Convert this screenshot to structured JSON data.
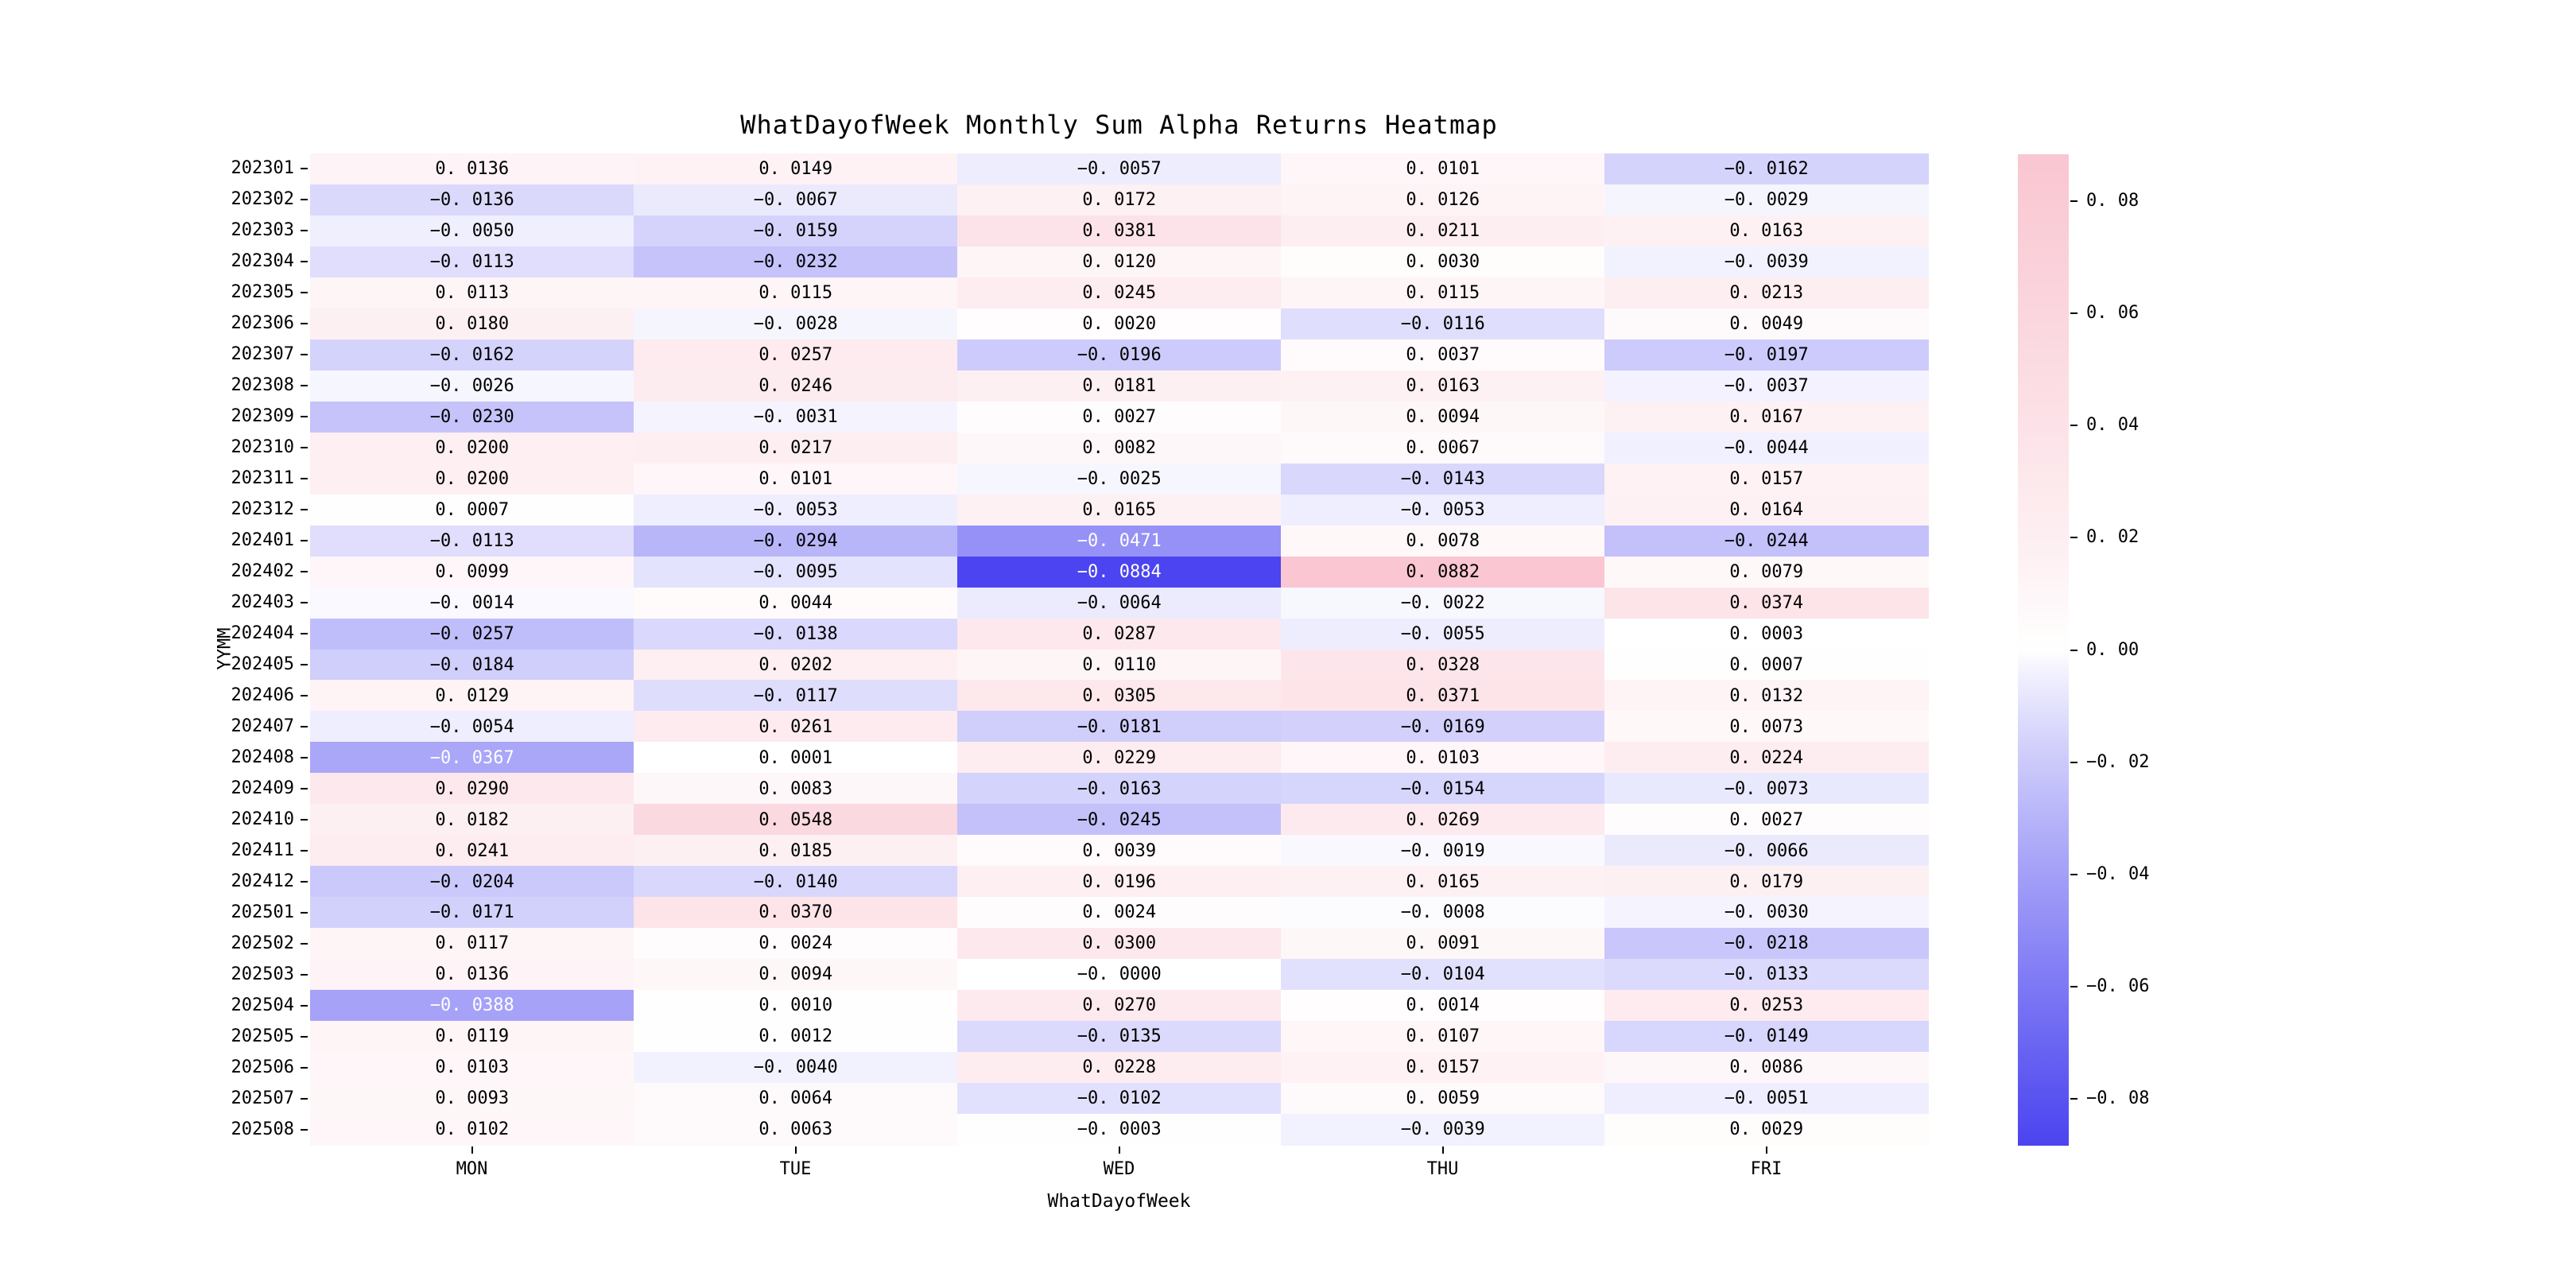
{
  "chart_data": {
    "type": "heatmap",
    "title": "WhatDayofWeek Monthly Sum Alpha Returns Heatmap",
    "xlabel": "WhatDayofWeek",
    "ylabel": "YYMM",
    "columns": [
      "MON",
      "TUE",
      "WED",
      "THU",
      "FRI"
    ],
    "rows": [
      "202301",
      "202302",
      "202303",
      "202304",
      "202305",
      "202306",
      "202307",
      "202308",
      "202309",
      "202310",
      "202311",
      "202312",
      "202401",
      "202402",
      "202403",
      "202404",
      "202405",
      "202406",
      "202407",
      "202408",
      "202409",
      "202410",
      "202411",
      "202412",
      "202501",
      "202502",
      "202503",
      "202504",
      "202505",
      "202506",
      "202507",
      "202508"
    ],
    "values": [
      [
        "0.0136",
        "0.0149",
        "-0.0057",
        "0.0101",
        "-0.0162"
      ],
      [
        "-0.0136",
        "-0.0067",
        "0.0172",
        "0.0126",
        "-0.0029"
      ],
      [
        "-0.0050",
        "-0.0159",
        "0.0381",
        "0.0211",
        "0.0163"
      ],
      [
        "-0.0113",
        "-0.0232",
        "0.0120",
        "0.0030",
        "-0.0039"
      ],
      [
        "0.0113",
        "0.0115",
        "0.0245",
        "0.0115",
        "0.0213"
      ],
      [
        "0.0180",
        "-0.0028",
        "0.0020",
        "-0.0116",
        "0.0049"
      ],
      [
        "-0.0162",
        "0.0257",
        "-0.0196",
        "0.0037",
        "-0.0197"
      ],
      [
        "-0.0026",
        "0.0246",
        "0.0181",
        "0.0163",
        "-0.0037"
      ],
      [
        "-0.0230",
        "-0.0031",
        "0.0027",
        "0.0094",
        "0.0167"
      ],
      [
        "0.0200",
        "0.0217",
        "0.0082",
        "0.0067",
        "-0.0044"
      ],
      [
        "0.0200",
        "0.0101",
        "-0.0025",
        "-0.0143",
        "0.0157"
      ],
      [
        "0.0007",
        "-0.0053",
        "0.0165",
        "-0.0053",
        "0.0164"
      ],
      [
        "-0.0113",
        "-0.0294",
        "-0.0471",
        "0.0078",
        "-0.0244"
      ],
      [
        "0.0099",
        "-0.0095",
        "-0.0884",
        "0.0882",
        "0.0079"
      ],
      [
        "-0.0014",
        "0.0044",
        "-0.0064",
        "-0.0022",
        "0.0374"
      ],
      [
        "-0.0257",
        "-0.0138",
        "0.0287",
        "-0.0055",
        "0.0003"
      ],
      [
        "-0.0184",
        "0.0202",
        "0.0110",
        "0.0328",
        "0.0007"
      ],
      [
        "0.0129",
        "-0.0117",
        "0.0305",
        "0.0371",
        "0.0132"
      ],
      [
        "-0.0054",
        "0.0261",
        "-0.0181",
        "-0.0169",
        "0.0073"
      ],
      [
        "-0.0367",
        "0.0001",
        "0.0229",
        "0.0103",
        "0.0224"
      ],
      [
        "0.0290",
        "0.0083",
        "-0.0163",
        "-0.0154",
        "-0.0073"
      ],
      [
        "0.0182",
        "0.0548",
        "-0.0245",
        "0.0269",
        "0.0027"
      ],
      [
        "0.0241",
        "0.0185",
        "0.0039",
        "-0.0019",
        "-0.0066"
      ],
      [
        "-0.0204",
        "-0.0140",
        "0.0196",
        "0.0165",
        "0.0179"
      ],
      [
        "-0.0171",
        "0.0370",
        "0.0024",
        "-0.0008",
        "-0.0030"
      ],
      [
        "0.0117",
        "0.0024",
        "0.0300",
        "0.0091",
        "-0.0218"
      ],
      [
        "0.0136",
        "0.0094",
        "-0.0000",
        "-0.0104",
        "-0.0133"
      ],
      [
        "-0.0388",
        "0.0010",
        "0.0270",
        "0.0014",
        "0.0253"
      ],
      [
        "0.0119",
        "0.0012",
        "-0.0135",
        "0.0107",
        "-0.0149"
      ],
      [
        "0.0103",
        "-0.0040",
        "0.0228",
        "0.0157",
        "0.0086"
      ],
      [
        "0.0093",
        "0.0064",
        "-0.0102",
        "0.0059",
        "-0.0051"
      ],
      [
        "0.0102",
        "0.0063",
        "-0.0003",
        "-0.0039",
        "0.0029"
      ]
    ],
    "colorbar_ticks": [
      "0.08",
      "0.06",
      "0.04",
      "0.02",
      "0.00",
      "-0.02",
      "-0.04",
      "-0.06",
      "-0.08"
    ],
    "vmin": -0.0884,
    "vmax": 0.0884,
    "legend_position": "right",
    "grid": false,
    "colors": {
      "positive_max": "#f9c6d1",
      "zero": "#ffffff",
      "negative_max": "#4b44f0",
      "annotation_dark": "#000000",
      "annotation_light": "#ffffff"
    }
  }
}
